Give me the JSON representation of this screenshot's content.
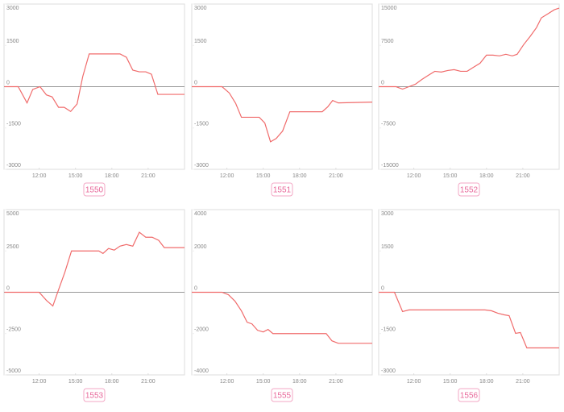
{
  "chart_data": [
    {
      "type": "line",
      "label": "1550",
      "color": "#f06b6b",
      "xlim": [
        9.1,
        24
      ],
      "xticks": [
        {
          "value": 12,
          "label": "12:00"
        },
        {
          "value": 15,
          "label": "15:00"
        },
        {
          "value": 18,
          "label": "18:00"
        },
        {
          "value": 21,
          "label": "21:00"
        }
      ],
      "ylim": [
        -3000,
        3000
      ],
      "yticks": [
        -3000,
        -1500,
        0,
        1500,
        3000
      ],
      "x": [
        9.13,
        10.27,
        11,
        11.47,
        12.07,
        12.6,
        13.07,
        13.6,
        14.07,
        14.6,
        15.13,
        15.6,
        16.13,
        18.67,
        19.2,
        19.73,
        20.27,
        20.8,
        21.27,
        21.8,
        24
      ],
      "values": [
        0,
        0,
        -590,
        -100,
        0,
        -300,
        -370,
        -750,
        -750,
        -900,
        -630,
        370,
        1190,
        1190,
        1070,
        600,
        540,
        540,
        450,
        -280,
        -280
      ]
    },
    {
      "type": "line",
      "label": "1551",
      "color": "#f06b6b",
      "xlim": [
        9.1,
        24
      ],
      "xticks": [
        {
          "value": 12,
          "label": "12:00"
        },
        {
          "value": 15,
          "label": "15:00"
        },
        {
          "value": 18,
          "label": "18:00"
        },
        {
          "value": 21,
          "label": "21:00"
        }
      ],
      "ylim": [
        -3000,
        3000
      ],
      "yticks": [
        -3000,
        -1500,
        0,
        1500,
        3000
      ],
      "x": [
        9.1,
        11.6,
        12.2,
        12.73,
        13.2,
        14.67,
        15.13,
        15.6,
        16.07,
        16.6,
        17.2,
        19.87,
        20.33,
        20.73,
        21.2,
        24
      ],
      "values": [
        0,
        0,
        -230,
        -610,
        -1110,
        -1110,
        -1320,
        -2000,
        -1880,
        -1610,
        -910,
        -910,
        -730,
        -500,
        -590,
        -560
      ]
    },
    {
      "type": "line",
      "label": "1552",
      "color": "#f06b6b",
      "xlim": [
        9.1,
        24
      ],
      "xticks": [
        {
          "value": 12,
          "label": "12:00"
        },
        {
          "value": 15,
          "label": "15:00"
        },
        {
          "value": 18,
          "label": "18:00"
        },
        {
          "value": 21,
          "label": "21:00"
        }
      ],
      "ylim": [
        -15000,
        15000
      ],
      "yticks": [
        -15000,
        -7500,
        0,
        7500,
        15000
      ],
      "x": [
        9.1,
        10.53,
        11.07,
        11.6,
        12.13,
        12.67,
        13.2,
        13.73,
        14.27,
        14.8,
        15.33,
        15.87,
        16.4,
        16.93,
        17.47,
        18,
        18.53,
        19.07,
        19.6,
        20.13,
        20.53,
        21.07,
        21.6,
        22.13,
        22.53,
        23.07,
        23.6,
        24
      ],
      "values": [
        0,
        0,
        -440,
        0,
        440,
        1320,
        2060,
        2790,
        2650,
        2940,
        3090,
        2790,
        2790,
        3530,
        4260,
        5730,
        5730,
        5590,
        5880,
        5590,
        5880,
        7640,
        9110,
        10730,
        12490,
        13230,
        13960,
        14260
      ]
    },
    {
      "type": "line",
      "label": "1553",
      "color": "#f06b6b",
      "xlim": [
        9.1,
        24
      ],
      "xticks": [
        {
          "value": 12,
          "label": "12:00"
        },
        {
          "value": 15,
          "label": "15:00"
        },
        {
          "value": 18,
          "label": "18:00"
        },
        {
          "value": 21,
          "label": "21:00"
        }
      ],
      "ylim": [
        -5000,
        5000
      ],
      "yticks": [
        -5000,
        -2500,
        0,
        2500,
        5000
      ],
      "x": [
        9.13,
        12,
        12.6,
        13.13,
        13.6,
        14.13,
        14.67,
        16.93,
        17.27,
        17.73,
        18.2,
        18.67,
        19.2,
        19.73,
        20.27,
        20.8,
        21.33,
        21.87,
        22.33,
        24
      ],
      "values": [
        0,
        0,
        -490,
        -830,
        150,
        1230,
        2500,
        2500,
        2350,
        2650,
        2550,
        2790,
        2890,
        2790,
        3630,
        3330,
        3330,
        3140,
        2700,
        2700
      ]
    },
    {
      "type": "line",
      "label": "1555",
      "color": "#f06b6b",
      "xlim": [
        9.1,
        24
      ],
      "xticks": [
        {
          "value": 12,
          "label": "12:00"
        },
        {
          "value": 15,
          "label": "15:00"
        },
        {
          "value": 18,
          "label": "18:00"
        },
        {
          "value": 21,
          "label": "21:00"
        }
      ],
      "ylim": [
        -4000,
        4000
      ],
      "yticks": [
        -4000,
        -2000,
        0,
        2000,
        4000
      ],
      "x": [
        9.1,
        11.6,
        12.13,
        12.67,
        13.2,
        13.67,
        14.07,
        14.53,
        15,
        15.4,
        15.8,
        20.2,
        20.67,
        21.2,
        24
      ],
      "values": [
        0,
        0,
        -120,
        -430,
        -900,
        -1450,
        -1530,
        -1840,
        -1920,
        -1800,
        -2000,
        -2000,
        -2350,
        -2470,
        -2470
      ]
    },
    {
      "type": "line",
      "label": "1556",
      "color": "#f06b6b",
      "xlim": [
        9.1,
        24
      ],
      "xticks": [
        {
          "value": 12,
          "label": "12:00"
        },
        {
          "value": 15,
          "label": "15:00"
        },
        {
          "value": 18,
          "label": "18:00"
        },
        {
          "value": 21,
          "label": "21:00"
        }
      ],
      "ylim": [
        -3000,
        3000
      ],
      "yticks": [
        -3000,
        -1500,
        0,
        1500,
        3000
      ],
      "x": [
        9.1,
        10.4,
        11.07,
        11.6,
        17.87,
        18.4,
        18.93,
        19.47,
        19.87,
        20.4,
        20.8,
        21.33,
        24
      ],
      "values": [
        0,
        0,
        -700,
        -640,
        -640,
        -670,
        -760,
        -820,
        -850,
        -1490,
        -1460,
        -2020,
        -2020
      ]
    }
  ]
}
